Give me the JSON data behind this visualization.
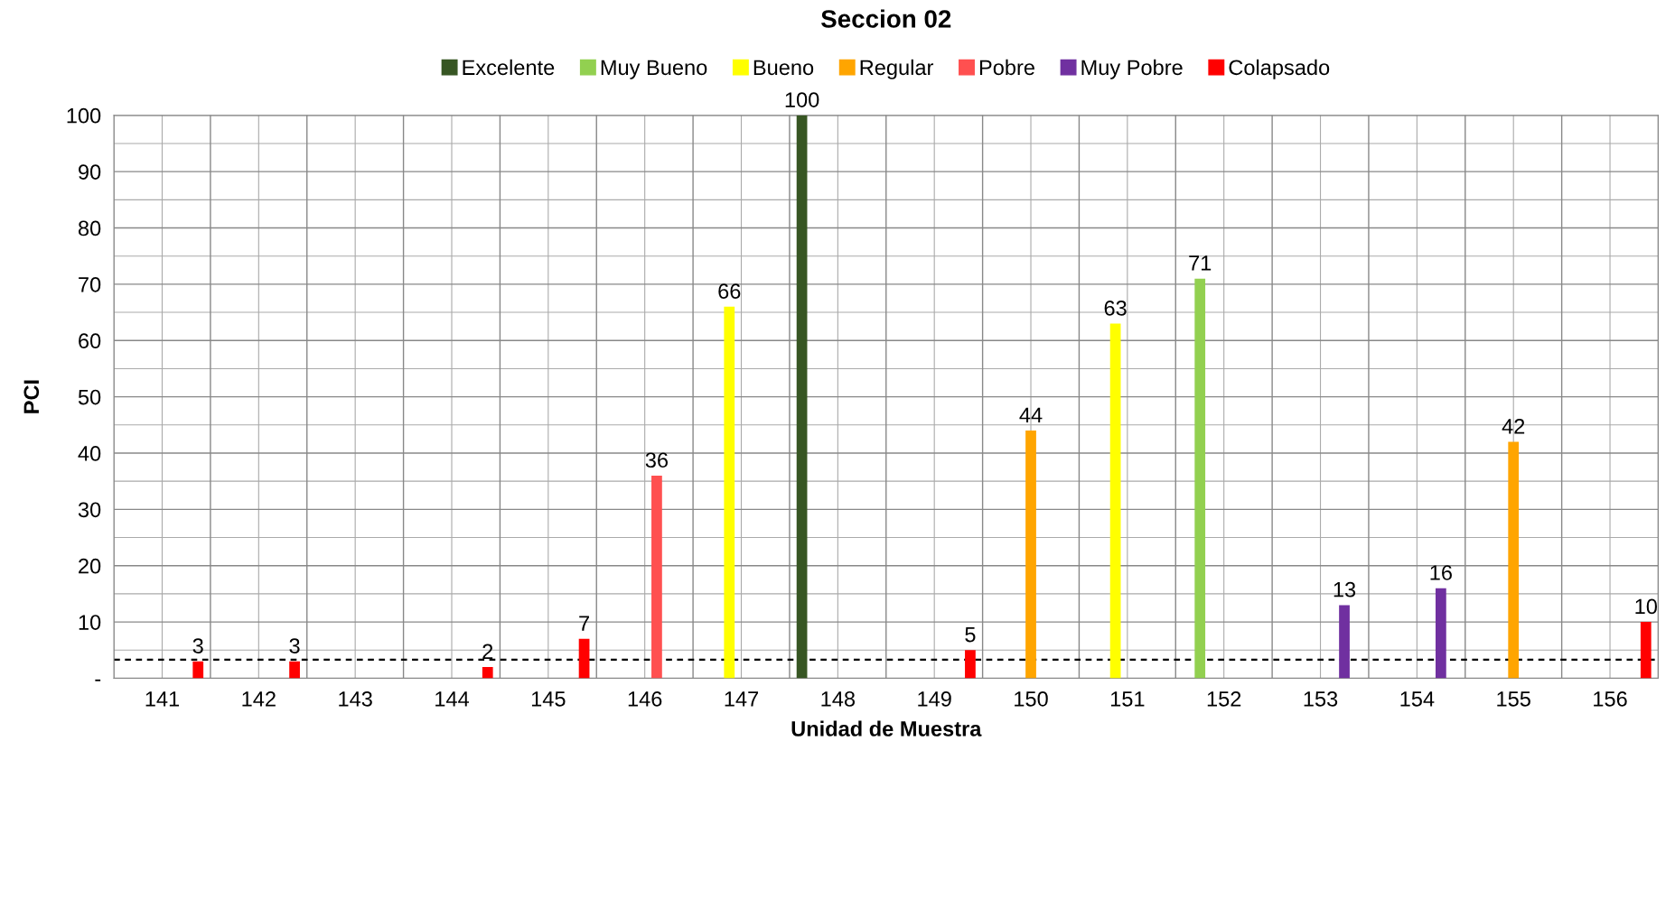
{
  "chart_data": {
    "type": "bar",
    "title": "Seccion 02",
    "xlabel": "Unidad de Muestra",
    "ylabel": "PCI",
    "categories": [
      "141",
      "142",
      "143",
      "144",
      "145",
      "146",
      "147",
      "148",
      "149",
      "150",
      "151",
      "152",
      "153",
      "154",
      "155",
      "156"
    ],
    "series": [
      {
        "name": "Excelente",
        "color": "#375623",
        "values": [
          null,
          null,
          null,
          null,
          null,
          null,
          null,
          100,
          null,
          null,
          null,
          null,
          null,
          null,
          null,
          null
        ]
      },
      {
        "name": "Muy Bueno",
        "color": "#92d050",
        "values": [
          null,
          null,
          null,
          null,
          null,
          null,
          null,
          null,
          null,
          null,
          null,
          71,
          null,
          null,
          null,
          null
        ]
      },
      {
        "name": "Bueno",
        "color": "#ffff00",
        "values": [
          null,
          null,
          null,
          null,
          null,
          null,
          66,
          null,
          null,
          null,
          63,
          null,
          null,
          null,
          null,
          null
        ]
      },
      {
        "name": "Regular",
        "color": "#ffa500",
        "values": [
          null,
          null,
          null,
          null,
          null,
          null,
          null,
          null,
          null,
          44,
          null,
          null,
          null,
          null,
          42,
          null
        ]
      },
      {
        "name": "Pobre",
        "color": "#ff5050",
        "values": [
          null,
          null,
          null,
          null,
          null,
          36,
          null,
          null,
          null,
          null,
          null,
          null,
          null,
          null,
          null,
          null
        ]
      },
      {
        "name": "Muy Pobre",
        "color": "#7030a0",
        "values": [
          null,
          null,
          null,
          null,
          null,
          null,
          null,
          null,
          null,
          null,
          null,
          null,
          13,
          16,
          null,
          null
        ]
      },
      {
        "name": "Colapsado",
        "color": "#ff0000",
        "values": [
          3,
          3,
          null,
          2,
          7,
          null,
          null,
          null,
          5,
          null,
          null,
          null,
          null,
          null,
          null,
          10
        ]
      }
    ],
    "ylim": [
      0,
      100
    ],
    "yticks": [
      {
        "value": 0,
        "label": "-"
      },
      10,
      20,
      30,
      40,
      50,
      60,
      70,
      80,
      90,
      100
    ],
    "ref_lines": [
      {
        "axis": "y",
        "value": 3.3,
        "label": null,
        "color": "#000000",
        "line_style": "dashed"
      }
    ],
    "data_labels": true,
    "grid": true,
    "legend": "top"
  }
}
